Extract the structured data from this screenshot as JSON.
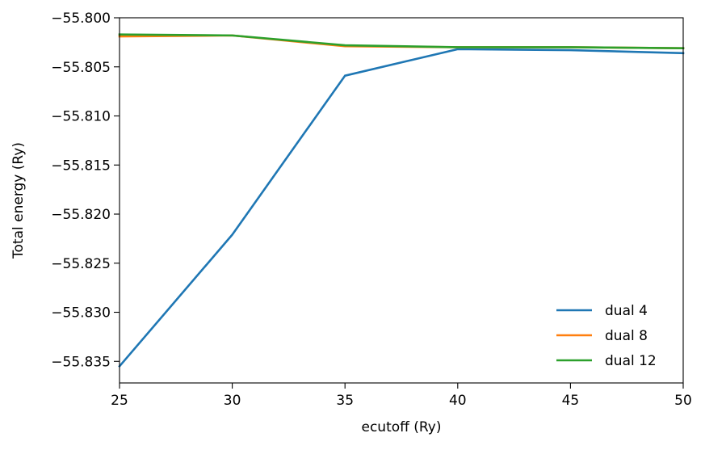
{
  "chart_data": {
    "type": "line",
    "title": "",
    "xlabel": "ecutoff (Ry)",
    "ylabel": "Total energy (Ry)",
    "x": [
      25,
      30,
      35,
      40,
      45,
      50
    ],
    "xlim": [
      25,
      50
    ],
    "ylim": [
      -55.8372,
      -55.8
    ],
    "xticks": [
      25,
      30,
      35,
      40,
      45,
      50
    ],
    "xtick_labels": [
      "25",
      "30",
      "35",
      "40",
      "45",
      "50"
    ],
    "yticks": [
      -55.8,
      -55.805,
      -55.81,
      -55.815,
      -55.82,
      -55.825,
      -55.83,
      -55.835
    ],
    "ytick_labels": [
      "−55.800",
      "−55.805",
      "−55.810",
      "−55.815",
      "−55.820",
      "−55.825",
      "−55.830",
      "−55.835"
    ],
    "grid": false,
    "legend_position": "lower-right",
    "series": [
      {
        "name": "dual 4",
        "color": "#1f77b4",
        "values": [
          -55.8355,
          -55.8221,
          -55.8059,
          -55.8032,
          -55.8033,
          -55.8036
        ]
      },
      {
        "name": "dual 8",
        "color": "#ff7f0e",
        "values": [
          -55.8019,
          -55.8018,
          -55.8029,
          -55.803,
          -55.803,
          -55.8031
        ]
      },
      {
        "name": "dual 12",
        "color": "#2ca02c",
        "values": [
          -55.8017,
          -55.8018,
          -55.8028,
          -55.803,
          -55.803,
          -55.8031
        ]
      }
    ]
  }
}
